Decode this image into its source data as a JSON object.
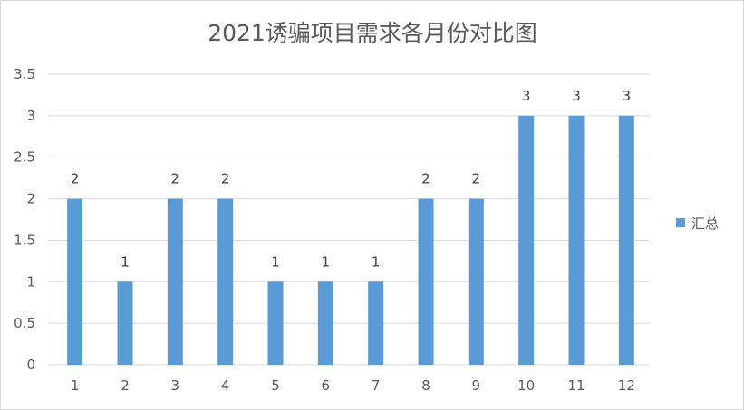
{
  "chart_data": {
    "type": "bar",
    "title": "2021诱骗项目需求各月份对比图",
    "categories": [
      "1",
      "2",
      "3",
      "4",
      "5",
      "6",
      "7",
      "8",
      "9",
      "10",
      "11",
      "12"
    ],
    "series": [
      {
        "name": "汇总",
        "values": [
          2,
          1,
          2,
          2,
          1,
          1,
          1,
          2,
          2,
          3,
          3,
          3
        ],
        "color": "#5b9bd5"
      }
    ],
    "yticks": [
      "0",
      "0.5",
      "1",
      "1.5",
      "2",
      "2.5",
      "3",
      "3.5"
    ],
    "ylim": [
      0,
      3.5
    ],
    "grid": true,
    "data_labels": true,
    "legend_position": "right",
    "colors": {
      "bar": "#5b9bd5",
      "grid": "#d9d9d9",
      "text": "#595959"
    }
  }
}
